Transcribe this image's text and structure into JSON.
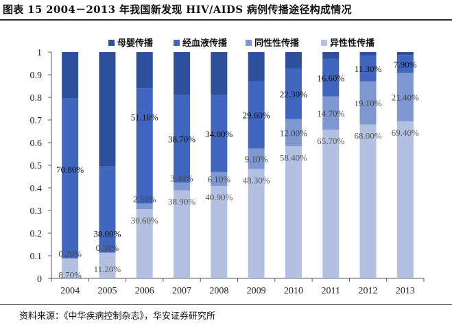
{
  "title": "图表 15 2004－2013 年我国新发现 HIV/AIDS 病例传播途径构成情况",
  "source": "资料来源：《中华疾病控制杂志》，华安证券研究所",
  "chart_data": {
    "type": "bar",
    "stacked": true,
    "title": "图表 15 2004－2013 年我国新发现 HIV/AIDS 病例传播途径构成情况",
    "xlabel": "",
    "ylabel": "",
    "ylim": [
      0,
      1
    ],
    "yticks": [
      "0",
      "0.1",
      "0.2",
      "0.3",
      "0.4",
      "0.5",
      "0.6",
      "0.7",
      "0.8",
      "0.9",
      "1"
    ],
    "legend_position": "top",
    "categories": [
      "2004",
      "2005",
      "2006",
      "2007",
      "2008",
      "2009",
      "2010",
      "2011",
      "2012",
      "2013"
    ],
    "series": [
      {
        "name": "异性性传播",
        "color": "#b4c0e2",
        "values": [
          0.087,
          0.112,
          0.306,
          0.389,
          0.409,
          0.483,
          0.584,
          0.657,
          0.68,
          0.694
        ],
        "labels": [
          "8.70%",
          "11.20%",
          "30.60%",
          "38.90%",
          "40.90%",
          "48.30%",
          "58.40%",
          "65.70%",
          "68.00%",
          "69.40%"
        ]
      },
      {
        "name": "同性性传播",
        "color": "#7f98d2",
        "values": [
          0.002,
          0.003,
          0.025,
          0.034,
          0.061,
          0.091,
          0.12,
          0.147,
          0.191,
          0.214
        ],
        "labels": [
          "0.20%",
          "0.30%",
          "2.50%",
          "3.40%",
          "6.10%",
          "9.10%",
          "12.00%",
          "14.70%",
          "19.10%",
          "21.40%"
        ]
      },
      {
        "name": "经血液传播",
        "color": "#4166c0",
        "values": [
          0.708,
          0.38,
          0.511,
          0.387,
          0.34,
          0.296,
          0.223,
          0.166,
          0.113,
          0.079
        ],
        "labels": [
          "70.80%",
          "38.00%",
          "51.10%",
          "38.70%",
          "34.00%",
          "29.60%",
          "22.30%",
          "16.60%",
          "11.30%",
          "7.90%"
        ]
      },
      {
        "name": "母婴传播",
        "color": "#2e4f9c",
        "values": [
          0.203,
          0.505,
          0.158,
          0.19,
          0.19,
          0.13,
          0.073,
          0.03,
          0.016,
          0.013
        ],
        "labels": [
          "",
          "",
          "",
          "",
          "",
          "",
          "",
          "",
          "",
          ""
        ]
      }
    ],
    "legend_order": [
      "母婴传播",
      "经血液传播",
      "同性性传播",
      "异性性传播"
    ]
  }
}
